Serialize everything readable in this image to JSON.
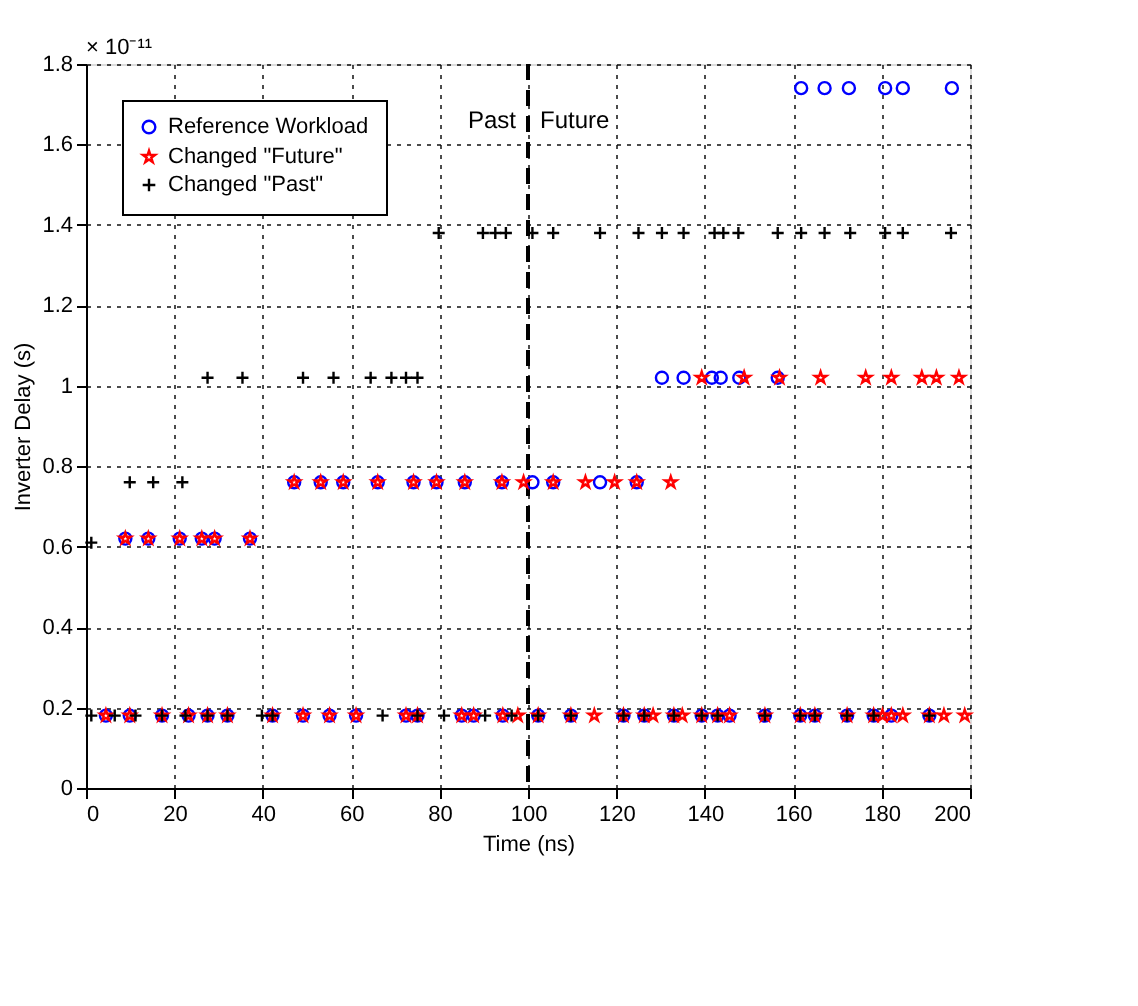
{
  "chart_data": {
    "type": "scatter",
    "xlabel": "Time (ns)",
    "ylabel": "Inverter Delay (s)",
    "xlim": [
      0,
      200
    ],
    "xticks": [
      0,
      20,
      40,
      60,
      80,
      100,
      120,
      140,
      160,
      180,
      200
    ],
    "ylim": [
      0,
      1.8
    ],
    "yticks": [
      0,
      0.2,
      0.4,
      0.6,
      0.8,
      1,
      1.2,
      1.4,
      1.6,
      1.8
    ],
    "grid": true,
    "legend": "top left",
    "annotations": [
      "× 10⁻¹¹",
      "Past",
      "Future"
    ],
    "ref_lines": [
      {
        "axis": "x",
        "value": 100,
        "line_style": "dashed",
        "color": "#000000"
      }
    ],
    "series": [
      {
        "name": "Reference Workload",
        "color": "#0000ff",
        "marker": "circle",
        "x": [
          4.5,
          9.9,
          17.2,
          23.2,
          27.5,
          32,
          42.2,
          49.1,
          55.1,
          61.1,
          72.4,
          75,
          85,
          87.7,
          94.3,
          102.3,
          109.7,
          121.6,
          126.3,
          133,
          139.3,
          142.9,
          145.6,
          153.6,
          161.6,
          164.9,
          172.2,
          178.2,
          182.2,
          190.8,
          8.9,
          14.1,
          21.2,
          26.2,
          29.1,
          37.1,
          47.1,
          53.1,
          58.2,
          66,
          74.1,
          79.3,
          85.7,
          94.1,
          101,
          105.7,
          116.3,
          124.6,
          130.3,
          135.2,
          141.6,
          143.6,
          147.8,
          156.5,
          161.8,
          167.1,
          172.6,
          180.8,
          184.8,
          195.9
        ],
        "values": [
          0.18,
          0.18,
          0.18,
          0.18,
          0.18,
          0.18,
          0.18,
          0.18,
          0.18,
          0.18,
          0.18,
          0.18,
          0.18,
          0.18,
          0.18,
          0.18,
          0.18,
          0.18,
          0.18,
          0.18,
          0.18,
          0.18,
          0.18,
          0.18,
          0.18,
          0.18,
          0.18,
          0.18,
          0.18,
          0.18,
          0.62,
          0.62,
          0.62,
          0.62,
          0.62,
          0.62,
          0.76,
          0.76,
          0.76,
          0.76,
          0.76,
          0.76,
          0.76,
          0.76,
          0.76,
          0.76,
          0.76,
          0.76,
          1.02,
          1.02,
          1.02,
          1.02,
          1.02,
          1.02,
          1.74,
          1.74,
          1.74,
          1.74,
          1.74,
          1.74
        ]
      },
      {
        "name": "Changed \"Future\"",
        "color": "#ff0000",
        "marker": "star",
        "x": [
          4.5,
          9.9,
          17.2,
          23.2,
          27.5,
          32,
          42.2,
          49.1,
          55.1,
          61.1,
          72.4,
          75,
          85,
          87.7,
          94.3,
          97.7,
          102.3,
          109.7,
          115,
          121.6,
          126.3,
          128.3,
          133,
          134.9,
          139.3,
          142.9,
          145.6,
          153.6,
          161.6,
          164.9,
          172.2,
          178.2,
          180.2,
          182.2,
          184.8,
          190.8,
          194.1,
          198.8,
          8.9,
          14.1,
          21.2,
          26.2,
          29.1,
          37.1,
          47.1,
          53.1,
          58.2,
          66,
          74.1,
          79.3,
          85.7,
          94.1,
          99,
          105.7,
          113,
          119.6,
          124.6,
          132.3,
          139.3,
          148.9,
          156.9,
          166.2,
          176.4,
          182.2,
          189.1,
          192.4,
          197.5
        ],
        "values": [
          0.18,
          0.18,
          0.18,
          0.18,
          0.18,
          0.18,
          0.18,
          0.18,
          0.18,
          0.18,
          0.18,
          0.18,
          0.18,
          0.18,
          0.18,
          0.18,
          0.18,
          0.18,
          0.18,
          0.18,
          0.18,
          0.18,
          0.18,
          0.18,
          0.18,
          0.18,
          0.18,
          0.18,
          0.18,
          0.18,
          0.18,
          0.18,
          0.18,
          0.18,
          0.18,
          0.18,
          0.18,
          0.18,
          0.62,
          0.62,
          0.62,
          0.62,
          0.62,
          0.62,
          0.76,
          0.76,
          0.76,
          0.76,
          0.76,
          0.76,
          0.76,
          0.76,
          0.76,
          0.76,
          0.76,
          0.76,
          0.76,
          0.76,
          1.02,
          1.02,
          1.02,
          1.02,
          1.02,
          1.02,
          1.02,
          1.02,
          1.02
        ]
      },
      {
        "name": "Changed \"Past\"",
        "color": "#000000",
        "marker": "cross",
        "x": [
          1.2,
          6.5,
          11.2,
          17.2,
          22.5,
          27.5,
          32,
          39.8,
          42.2,
          67.1,
          75,
          81,
          90.3,
          96.3,
          102.3,
          109.7,
          121.6,
          126.3,
          133,
          139.3,
          142.9,
          153.6,
          161.6,
          164.9,
          172.2,
          178.2,
          190.8,
          1.2,
          9.9,
          15.2,
          21.8,
          27.5,
          35.4,
          49.1,
          56,
          64.4,
          69.1,
          72.4,
          75,
          79.8,
          89.8,
          92.6,
          95,
          101,
          105.7,
          116.3,
          125,
          130.3,
          135.2,
          142.2,
          144.2,
          147.6,
          156.5,
          161.8,
          167.1,
          172.9,
          180.8,
          184.8,
          195.7
        ],
        "values": [
          0.18,
          0.18,
          0.18,
          0.18,
          0.18,
          0.18,
          0.18,
          0.18,
          0.18,
          0.18,
          0.18,
          0.18,
          0.18,
          0.18,
          0.18,
          0.18,
          0.18,
          0.18,
          0.18,
          0.18,
          0.18,
          0.18,
          0.18,
          0.18,
          0.18,
          0.18,
          0.18,
          0.61,
          0.76,
          0.76,
          0.76,
          1.02,
          1.02,
          1.02,
          1.02,
          1.02,
          1.02,
          1.02,
          1.02,
          1.38,
          1.38,
          1.38,
          1.38,
          1.38,
          1.38,
          1.38,
          1.38,
          1.38,
          1.38,
          1.38,
          1.38,
          1.38,
          1.38,
          1.38,
          1.38,
          1.38,
          1.38,
          1.38,
          1.38
        ]
      }
    ]
  }
}
